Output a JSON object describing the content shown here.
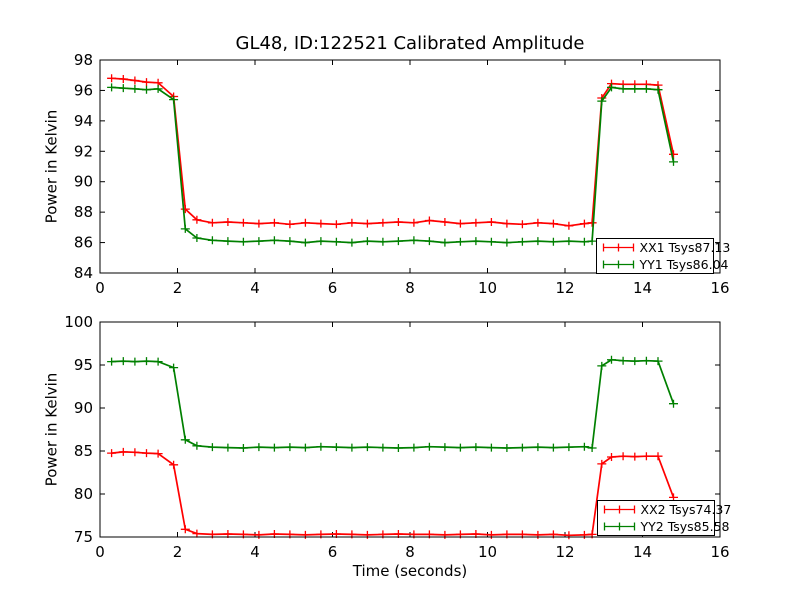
{
  "figure": {
    "title": "GL48, ID:122521 Calibrated Amplitude",
    "background_color": "#ffffff",
    "frame_color": "#000000",
    "red_accent": "#ff0000",
    "green_accent": "#008000"
  },
  "chart_data": [
    {
      "type": "line",
      "marker": "plus",
      "xlabel": "",
      "ylabel": "Power in Kelvin",
      "xlim": [
        0,
        16
      ],
      "ylim": [
        84,
        98
      ],
      "xticks": [
        0,
        2,
        4,
        6,
        8,
        10,
        12,
        14,
        16
      ],
      "yticks": [
        84,
        86,
        88,
        90,
        92,
        94,
        96,
        98
      ],
      "grid": false,
      "legend_position": "lower right",
      "x": [
        0.3,
        0.6,
        0.9,
        1.2,
        1.5,
        1.9,
        2.2,
        2.5,
        2.9,
        3.3,
        3.7,
        4.1,
        4.5,
        4.9,
        5.3,
        5.7,
        6.1,
        6.5,
        6.9,
        7.3,
        7.7,
        8.1,
        8.5,
        8.9,
        9.3,
        9.7,
        10.1,
        10.5,
        10.9,
        11.3,
        11.7,
        12.1,
        12.5,
        12.7,
        12.95,
        13.2,
        13.5,
        13.8,
        14.1,
        14.4,
        14.8
      ],
      "series": [
        {
          "name": "XX1 Tsys87.13",
          "color": "#ff0000",
          "values": [
            96.8,
            96.75,
            96.65,
            96.55,
            96.5,
            95.6,
            88.2,
            87.5,
            87.3,
            87.35,
            87.3,
            87.25,
            87.3,
            87.2,
            87.3,
            87.25,
            87.2,
            87.3,
            87.25,
            87.3,
            87.35,
            87.3,
            87.45,
            87.35,
            87.25,
            87.3,
            87.35,
            87.25,
            87.2,
            87.3,
            87.25,
            87.1,
            87.25,
            87.3,
            95.5,
            96.45,
            96.4,
            96.4,
            96.4,
            96.35,
            91.8
          ]
        },
        {
          "name": "YY1 Tsys86.04",
          "color": "#008000",
          "values": [
            96.2,
            96.15,
            96.1,
            96.05,
            96.1,
            95.4,
            86.9,
            86.3,
            86.15,
            86.1,
            86.05,
            86.1,
            86.15,
            86.1,
            86.0,
            86.1,
            86.05,
            86.0,
            86.1,
            86.05,
            86.1,
            86.15,
            86.1,
            86.0,
            86.05,
            86.1,
            86.05,
            86.0,
            86.05,
            86.1,
            86.05,
            86.1,
            86.05,
            86.1,
            95.3,
            96.2,
            96.1,
            96.1,
            96.1,
            96.05,
            91.3
          ]
        }
      ]
    },
    {
      "type": "line",
      "marker": "plus",
      "xlabel": "Time (seconds)",
      "ylabel": "Power in Kelvin",
      "xlim": [
        0,
        16
      ],
      "ylim": [
        75,
        100
      ],
      "xticks": [
        0,
        2,
        4,
        6,
        8,
        10,
        12,
        14,
        16
      ],
      "yticks": [
        75,
        80,
        85,
        90,
        95,
        100
      ],
      "grid": false,
      "legend_position": "lower right",
      "x": [
        0.3,
        0.6,
        0.9,
        1.2,
        1.5,
        1.9,
        2.2,
        2.5,
        2.9,
        3.3,
        3.7,
        4.1,
        4.5,
        4.9,
        5.3,
        5.7,
        6.1,
        6.5,
        6.9,
        7.3,
        7.7,
        8.1,
        8.5,
        8.9,
        9.3,
        9.7,
        10.1,
        10.5,
        10.9,
        11.3,
        11.7,
        12.1,
        12.5,
        12.7,
        12.95,
        13.2,
        13.5,
        13.8,
        14.1,
        14.4,
        14.8
      ],
      "series": [
        {
          "name": "XX2 Tsys74.37",
          "color": "#ff0000",
          "values": [
            84.75,
            84.9,
            84.85,
            84.75,
            84.7,
            83.4,
            75.9,
            75.4,
            75.3,
            75.35,
            75.3,
            75.25,
            75.35,
            75.3,
            75.25,
            75.3,
            75.35,
            75.3,
            75.25,
            75.3,
            75.35,
            75.3,
            75.3,
            75.25,
            75.3,
            75.35,
            75.25,
            75.3,
            75.3,
            75.25,
            75.3,
            75.2,
            75.25,
            75.3,
            83.5,
            84.3,
            84.4,
            84.35,
            84.4,
            84.4,
            79.6
          ]
        },
        {
          "name": "YY2 Tsys85.58",
          "color": "#008000",
          "values": [
            95.4,
            95.45,
            95.4,
            95.45,
            95.4,
            94.7,
            86.3,
            85.6,
            85.45,
            85.4,
            85.35,
            85.45,
            85.4,
            85.45,
            85.4,
            85.5,
            85.45,
            85.4,
            85.45,
            85.4,
            85.35,
            85.4,
            85.5,
            85.45,
            85.4,
            85.45,
            85.4,
            85.35,
            85.4,
            85.45,
            85.4,
            85.45,
            85.5,
            85.35,
            94.9,
            95.6,
            95.5,
            95.45,
            95.5,
            95.45,
            90.5
          ]
        }
      ]
    }
  ]
}
